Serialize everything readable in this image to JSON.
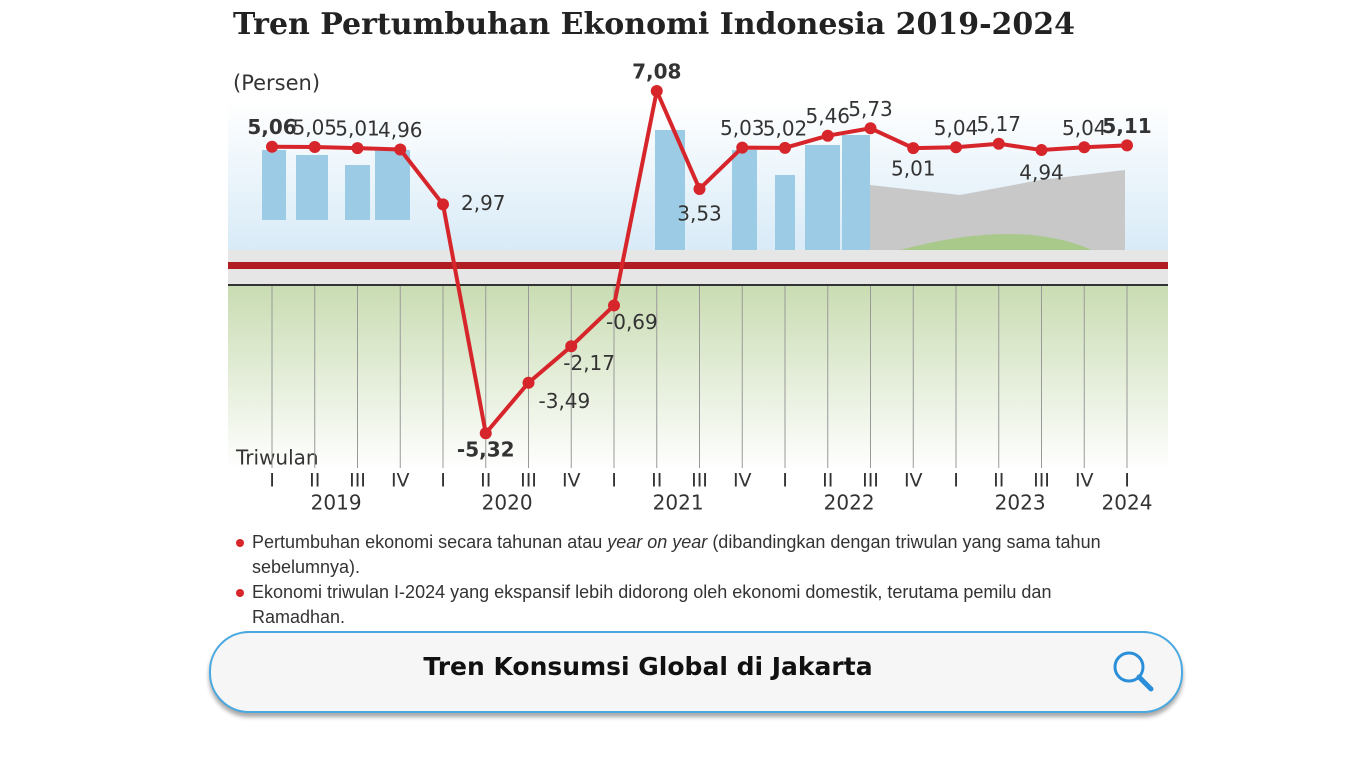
{
  "chart_data": {
    "type": "line",
    "title": "Tren Pertumbuhan Ekonomi Indonesia 2019-2024",
    "y_label": "(Persen)",
    "x_label": "Triwulan",
    "categories": [
      "I",
      "II",
      "III",
      "IV",
      "I",
      "II",
      "III",
      "IV",
      "I",
      "II",
      "III",
      "IV",
      "I",
      "II",
      "III",
      "IV",
      "I",
      "II",
      "III",
      "IV",
      "I"
    ],
    "years": [
      "2019",
      "2020",
      "2021",
      "2022",
      "2023",
      "2024"
    ],
    "series": [
      {
        "name": "Pertumbuhan ekonomi",
        "color": "#d7262b",
        "values": [
          5.06,
          5.05,
          5.01,
          4.96,
          2.97,
          -5.32,
          -3.49,
          -2.17,
          -0.69,
          7.08,
          3.53,
          5.03,
          5.02,
          5.46,
          5.73,
          5.01,
          5.04,
          5.17,
          4.94,
          5.04,
          5.11
        ],
        "value_labels": [
          "5,06",
          "5,05",
          "5,01",
          "4,96",
          "2,97",
          "-5,32",
          "-3,49",
          "-2,17",
          "-0,69",
          "7,08",
          "3,53",
          "5,03",
          "5,02",
          "5,46",
          "5,73",
          "5,01",
          "5,04",
          "5,17",
          "4,94",
          "5,04",
          "5,11"
        ]
      }
    ],
    "ylim": [
      -7,
      8
    ],
    "notes": [
      [
        "Pertumbuhan ekonomi secara tahunan atau ",
        "year on year",
        " (dibandingkan dengan triwulan yang sama tahun sebelumnya)."
      ],
      "Ekonomi triwulan I-2024 yang ekspansif lebih didorong oleh ekonomi domestik, terutama pemilu dan Ramadhan."
    ]
  },
  "search": {
    "query": "Tren Konsumsi Global di Jakarta"
  }
}
